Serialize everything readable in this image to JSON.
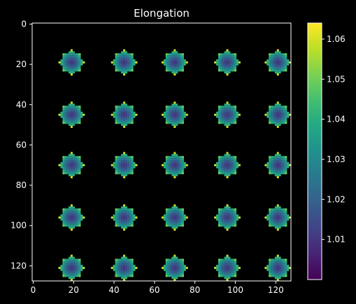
{
  "chart_data": {
    "type": "heatmap",
    "title": "Elongation",
    "xlabel": "",
    "ylabel": "",
    "x_ticks": [
      0,
      20,
      40,
      60,
      80,
      100,
      120
    ],
    "y_ticks": [
      0,
      20,
      40,
      60,
      80,
      100,
      120
    ],
    "xlim": [
      -0.5,
      127.5
    ],
    "ylim": [
      127.5,
      -0.5
    ],
    "y_axis_inverted": true,
    "grid": false,
    "background": "#000000",
    "colormap": "viridis",
    "blobs": {
      "centers_x": [
        19,
        44.5,
        70,
        95.5,
        121
      ],
      "centers_y": [
        19,
        44.5,
        70,
        95.5,
        121
      ],
      "radius": 5,
      "center_value": 1.01,
      "edge_value": 1.04,
      "spike_value": 1.06
    },
    "colorbar": {
      "min": 1.0,
      "max": 1.064,
      "ticks": [
        1.01,
        1.02,
        1.03,
        1.04,
        1.05,
        1.06
      ],
      "tick_labels": [
        "1.01",
        "1.02",
        "1.03",
        "1.04",
        "1.05",
        "1.06"
      ]
    }
  }
}
